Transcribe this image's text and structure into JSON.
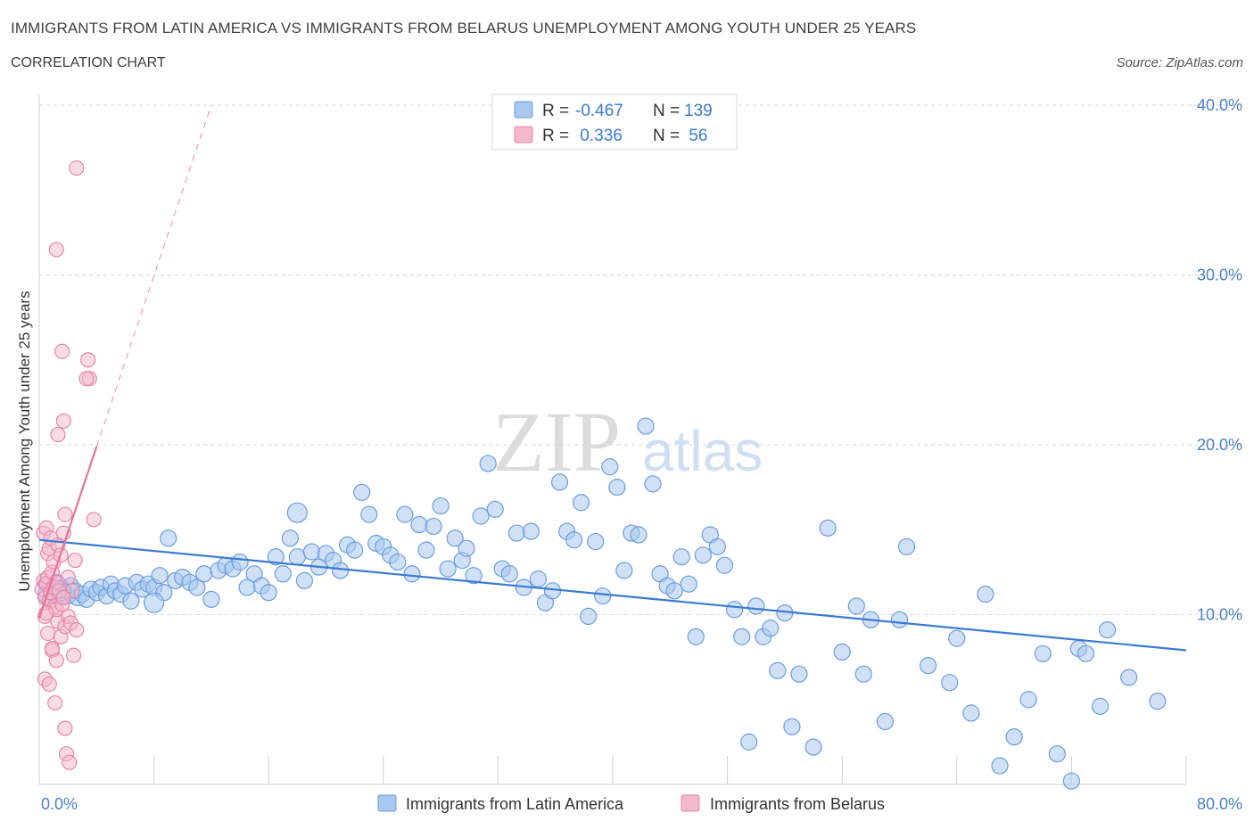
{
  "header": {
    "title": "IMMIGRANTS FROM LATIN AMERICA VS IMMIGRANTS FROM BELARUS UNEMPLOYMENT AMONG YOUTH UNDER 25 YEARS",
    "subtitle": "CORRELATION CHART",
    "source": "Source: ZipAtlas.com"
  },
  "watermark": {
    "zip": "ZIP",
    "atlas": "atlas"
  },
  "colors": {
    "blue_fill": "#a9c8f0",
    "blue_stroke": "#6a9ee0",
    "blue_line": "#3a7bd5",
    "pink_fill": "#f4b8cc",
    "pink_stroke": "#e887a8",
    "pink_line": "#e8709a",
    "grid": "#d8d8d8",
    "axis_text": "#4a7fc8"
  },
  "chart_data": {
    "type": "scatter",
    "title": "IMMIGRANTS FROM LATIN AMERICA VS IMMIGRANTS FROM BELARUS UNEMPLOYMENT AMONG YOUTH UNDER 25 YEARS",
    "xlabel": "",
    "ylabel": "Unemployment Among Youth under 25 years",
    "xlim": [
      0,
      80
    ],
    "ylim": [
      0,
      40
    ],
    "x_tick_labels": [
      "0.0%",
      "80.0%"
    ],
    "y_ticks": [
      10,
      20,
      30,
      40
    ],
    "y_tick_labels": [
      "10.0%",
      "20.0%",
      "30.0%",
      "40.0%"
    ],
    "grid": true,
    "legend_position": "top-center",
    "legend": [
      {
        "swatch": "blue",
        "r_label": "R =",
        "r_value": "-0.467",
        "n_label": "N =",
        "n_value": "139"
      },
      {
        "swatch": "pink",
        "r_label": "R =",
        "r_value": " 0.336",
        "n_label": "N =",
        "n_value": " 56"
      }
    ],
    "series": [
      {
        "name": "Immigrants from Latin America",
        "color": "#a9c8f0",
        "trend": {
          "x": [
            0,
            80
          ],
          "y": [
            14.4,
            7.9
          ],
          "dashed_extension": false
        },
        "points": [
          [
            0.5,
            11.8
          ],
          [
            0.8,
            11.5
          ],
          [
            1.0,
            11.2
          ],
          [
            1.2,
            11.9
          ],
          [
            1.4,
            11.0
          ],
          [
            1.6,
            11.6
          ],
          [
            1.8,
            11.3
          ],
          [
            2.0,
            11.1
          ],
          [
            2.2,
            11.7
          ],
          [
            2.5,
            11.4
          ],
          [
            2.7,
            11.0
          ],
          [
            3.0,
            11.2
          ],
          [
            3.3,
            10.9
          ],
          [
            3.6,
            11.5
          ],
          [
            4.0,
            11.3
          ],
          [
            4.3,
            11.6
          ],
          [
            4.7,
            11.1
          ],
          [
            5.0,
            11.8
          ],
          [
            5.3,
            11.4
          ],
          [
            5.7,
            11.2
          ],
          [
            6.0,
            11.7
          ],
          [
            6.4,
            10.8
          ],
          [
            6.8,
            11.9
          ],
          [
            7.2,
            11.5
          ],
          [
            7.6,
            11.8
          ],
          [
            8.0,
            11.6
          ],
          [
            8.4,
            12.3
          ],
          [
            8.7,
            11.3
          ],
          [
            9.0,
            14.5
          ],
          [
            9.5,
            12.0
          ],
          [
            10.0,
            12.2
          ],
          [
            10.5,
            11.9
          ],
          [
            11.0,
            11.6
          ],
          [
            11.5,
            12.4
          ],
          [
            12.0,
            10.9
          ],
          [
            12.5,
            12.6
          ],
          [
            13.0,
            12.9
          ],
          [
            13.5,
            12.7
          ],
          [
            14.0,
            13.1
          ],
          [
            14.5,
            11.6
          ],
          [
            15.0,
            12.4
          ],
          [
            15.5,
            11.7
          ],
          [
            16.0,
            11.3
          ],
          [
            16.5,
            13.4
          ],
          [
            17.0,
            12.4
          ],
          [
            17.5,
            14.5
          ],
          [
            18.0,
            13.4
          ],
          [
            18.5,
            12.0
          ],
          [
            19.0,
            13.7
          ],
          [
            19.5,
            12.8
          ],
          [
            20.0,
            13.6
          ],
          [
            20.5,
            13.2
          ],
          [
            21.0,
            12.6
          ],
          [
            21.5,
            14.1
          ],
          [
            22.0,
            13.8
          ],
          [
            22.5,
            17.2
          ],
          [
            23.0,
            15.9
          ],
          [
            23.5,
            14.2
          ],
          [
            24.0,
            14.0
          ],
          [
            24.5,
            13.5
          ],
          [
            25.0,
            13.1
          ],
          [
            25.5,
            15.9
          ],
          [
            26.0,
            12.4
          ],
          [
            26.5,
            15.3
          ],
          [
            27.0,
            13.8
          ],
          [
            27.5,
            15.2
          ],
          [
            28.0,
            16.4
          ],
          [
            28.5,
            12.7
          ],
          [
            29.0,
            14.5
          ],
          [
            29.5,
            13.2
          ],
          [
            29.8,
            13.9
          ],
          [
            30.3,
            12.3
          ],
          [
            30.8,
            15.8
          ],
          [
            31.3,
            18.9
          ],
          [
            31.8,
            16.2
          ],
          [
            32.3,
            12.7
          ],
          [
            32.8,
            12.4
          ],
          [
            33.3,
            14.8
          ],
          [
            33.8,
            11.6
          ],
          [
            34.3,
            14.9
          ],
          [
            34.8,
            12.1
          ],
          [
            35.3,
            10.7
          ],
          [
            35.8,
            11.4
          ],
          [
            36.3,
            17.8
          ],
          [
            36.8,
            14.9
          ],
          [
            37.3,
            14.4
          ],
          [
            37.8,
            16.6
          ],
          [
            38.3,
            9.9
          ],
          [
            38.8,
            14.3
          ],
          [
            39.3,
            11.1
          ],
          [
            39.8,
            18.7
          ],
          [
            40.3,
            17.5
          ],
          [
            40.8,
            12.6
          ],
          [
            41.3,
            14.8
          ],
          [
            41.8,
            14.7
          ],
          [
            42.3,
            21.1
          ],
          [
            42.8,
            17.7
          ],
          [
            43.3,
            12.4
          ],
          [
            43.8,
            11.7
          ],
          [
            44.3,
            11.4
          ],
          [
            44.8,
            13.4
          ],
          [
            45.3,
            11.8
          ],
          [
            45.8,
            8.7
          ],
          [
            46.3,
            13.5
          ],
          [
            46.8,
            14.7
          ],
          [
            47.3,
            14.0
          ],
          [
            47.8,
            12.9
          ],
          [
            48.5,
            10.3
          ],
          [
            49.0,
            8.7
          ],
          [
            49.5,
            2.5
          ],
          [
            50.0,
            10.5
          ],
          [
            50.5,
            8.7
          ],
          [
            51.0,
            9.2
          ],
          [
            51.5,
            6.7
          ],
          [
            52.0,
            10.1
          ],
          [
            52.5,
            3.4
          ],
          [
            53.0,
            6.5
          ],
          [
            54.0,
            2.2
          ],
          [
            55.0,
            15.1
          ],
          [
            56.0,
            7.8
          ],
          [
            57.0,
            10.5
          ],
          [
            57.5,
            6.5
          ],
          [
            58.0,
            9.7
          ],
          [
            59.0,
            3.7
          ],
          [
            60.0,
            9.7
          ],
          [
            60.5,
            14.0
          ],
          [
            62.0,
            7.0
          ],
          [
            63.5,
            6.0
          ],
          [
            64.0,
            8.6
          ],
          [
            65.0,
            4.2
          ],
          [
            66.0,
            11.2
          ],
          [
            67.0,
            1.1
          ],
          [
            68.0,
            2.8
          ],
          [
            69.0,
            5.0
          ],
          [
            70.0,
            7.7
          ],
          [
            71.0,
            1.8
          ],
          [
            72.0,
            0.2
          ],
          [
            72.5,
            8.0
          ],
          [
            73.0,
            7.7
          ],
          [
            74.0,
            4.6
          ],
          [
            74.5,
            9.1
          ],
          [
            76.0,
            6.3
          ],
          [
            78.0,
            4.9
          ]
        ],
        "large_points": [
          [
            0.6,
            11.2
          ],
          [
            1.5,
            11.4
          ],
          [
            18.0,
            16.0
          ],
          [
            8.0,
            10.7
          ]
        ]
      },
      {
        "name": "Immigrants from Belarus",
        "color": "#f4b8cc",
        "trend": {
          "x": [
            0,
            4.0,
            12.0
          ],
          "y": [
            9.8,
            19.9,
            40.0
          ],
          "dashed_extension": true
        },
        "points": [
          [
            0.2,
            11.5
          ],
          [
            0.3,
            12.0
          ],
          [
            0.4,
            11.0
          ],
          [
            0.5,
            11.8
          ],
          [
            0.6,
            12.2
          ],
          [
            0.7,
            10.8
          ],
          [
            0.8,
            11.3
          ],
          [
            0.9,
            12.5
          ],
          [
            1.0,
            11.6
          ],
          [
            1.1,
            10.5
          ],
          [
            1.2,
            11.9
          ],
          [
            0.3,
            14.8
          ],
          [
            0.5,
            15.1
          ],
          [
            0.6,
            13.6
          ],
          [
            0.7,
            13.9
          ],
          [
            0.8,
            14.5
          ],
          [
            1.0,
            13.1
          ],
          [
            1.3,
            14.1
          ],
          [
            1.5,
            13.5
          ],
          [
            1.7,
            14.8
          ],
          [
            1.8,
            15.9
          ],
          [
            2.0,
            12.2
          ],
          [
            1.3,
            9.6
          ],
          [
            1.5,
            8.7
          ],
          [
            1.8,
            9.3
          ],
          [
            2.0,
            9.9
          ],
          [
            2.2,
            9.5
          ],
          [
            2.5,
            13.2
          ],
          [
            0.4,
            9.9
          ],
          [
            0.6,
            8.9
          ],
          [
            0.9,
            7.9
          ],
          [
            1.2,
            7.3
          ],
          [
            2.4,
            7.6
          ],
          [
            0.4,
            6.2
          ],
          [
            0.7,
            5.9
          ],
          [
            1.1,
            4.8
          ],
          [
            1.8,
            3.3
          ],
          [
            1.9,
            1.8
          ],
          [
            2.1,
            1.3
          ],
          [
            0.9,
            8.0
          ],
          [
            3.8,
            15.6
          ],
          [
            1.2,
            10.3
          ],
          [
            1.6,
            10.6
          ],
          [
            2.3,
            11.4
          ],
          [
            0.5,
            10.1
          ],
          [
            1.4,
            11.4
          ],
          [
            1.7,
            11.0
          ],
          [
            2.6,
            9.1
          ],
          [
            2.6,
            36.3
          ],
          [
            1.2,
            31.5
          ],
          [
            1.6,
            25.5
          ],
          [
            3.4,
            25.0
          ],
          [
            3.5,
            23.9
          ],
          [
            3.3,
            23.9
          ],
          [
            1.7,
            21.4
          ],
          [
            1.3,
            20.6
          ]
        ]
      }
    ]
  },
  "bottom_legend": [
    {
      "label": "Immigrants from Latin America",
      "swatch": "blue"
    },
    {
      "label": "Immigrants from Belarus",
      "swatch": "pink"
    }
  ]
}
